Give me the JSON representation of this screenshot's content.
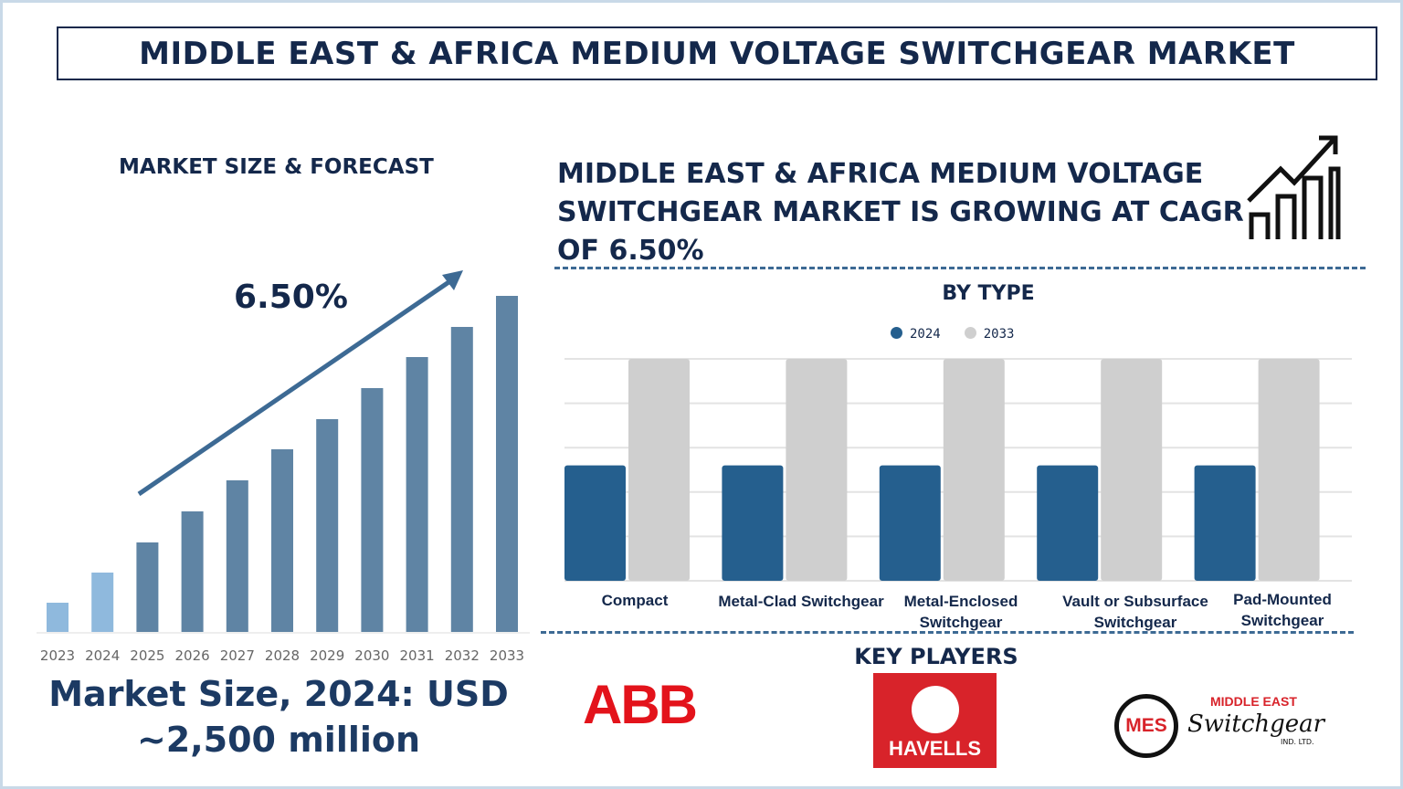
{
  "title": "MIDDLE EAST & AFRICA MEDIUM VOLTAGE SWITCHGEAR MARKET",
  "left": {
    "heading": "MARKET SIZE & FORECAST",
    "cagr_label": "6.50%",
    "market_size_line1": "Market Size, 2024: USD",
    "market_size_line2": "~2,500 million"
  },
  "right": {
    "headline": "MIDDLE EAST & AFRICA MEDIUM VOLTAGE SWITCHGEAR MARKET IS GROWING AT CAGR OF 6.50%",
    "by_type": "BY TYPE",
    "key_players": "KEY PLAYERS",
    "players": [
      {
        "name": "ABB"
      },
      {
        "name": "HAVELLS"
      },
      {
        "name": "MES",
        "line1": "MIDDLE EAST",
        "line2": "Switchgear",
        "line3": "IND. LTD."
      }
    ]
  },
  "colors": {
    "navy": "#14284b",
    "bar2024": "#255f8e",
    "bar2033": "#cfcfcf",
    "forecast": "#5f84a4",
    "history": "#8fb9dd"
  },
  "chart_data": [
    {
      "type": "bar",
      "title": "MARKET SIZE & FORECAST",
      "categories": [
        "2023",
        "2024",
        "2025",
        "2026",
        "2027",
        "2028",
        "2029",
        "2030",
        "2031",
        "2032",
        "2033"
      ],
      "values": [
        32,
        65,
        98,
        132,
        166,
        200,
        233,
        267,
        301,
        334,
        368
      ],
      "ylim": [
        0,
        380
      ],
      "grid": false,
      "annotation": "6.50%"
    },
    {
      "type": "bar",
      "title": "BY TYPE",
      "categories": [
        "Compact",
        "Metal-Clad Switchgear",
        "Metal-Enclosed Switchgear",
        "Vault or Subsurface Switchgear",
        "Pad-Mounted Switchgear"
      ],
      "series": [
        {
          "name": "2024",
          "values": [
            2.6,
            2.6,
            2.6,
            2.6,
            2.6
          ]
        },
        {
          "name": "2033",
          "values": [
            5,
            5,
            5,
            5,
            5
          ]
        }
      ],
      "ylim": [
        0,
        5
      ],
      "grid": true,
      "legend": "top"
    }
  ]
}
